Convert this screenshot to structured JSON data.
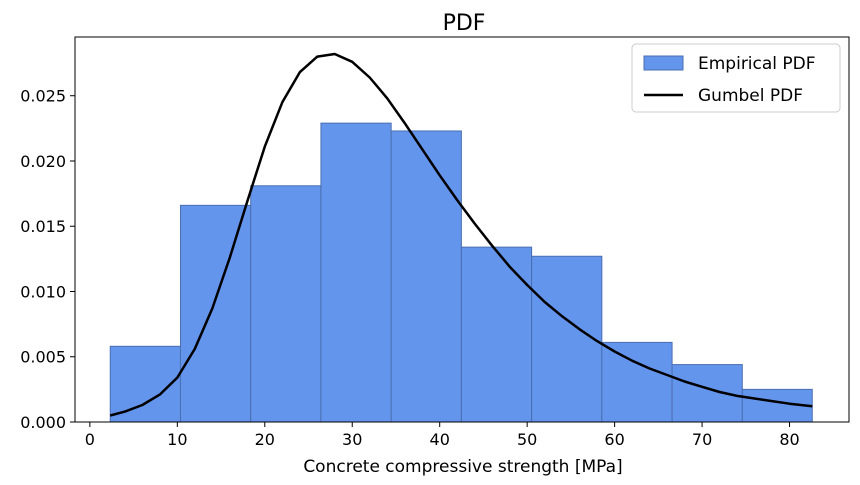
{
  "chart_data": {
    "type": "bar",
    "title": "PDF",
    "xlabel": "Concrete compressive strength [MPa]",
    "ylabel": "",
    "xlim": [
      -1.7,
      86.8
    ],
    "ylim": [
      0,
      0.0295
    ],
    "xticks": [
      0,
      10,
      20,
      30,
      40,
      50,
      60,
      70,
      80
    ],
    "xtick_labels": [
      "0",
      "10",
      "20",
      "30",
      "40",
      "50",
      "60",
      "70",
      "80"
    ],
    "yticks": [
      0,
      0.005,
      0.01,
      0.015,
      0.02,
      0.025
    ],
    "ytick_labels": [
      "0.000",
      "0.005",
      "0.010",
      "0.015",
      "0.020",
      "0.025"
    ],
    "grid": false,
    "legend_position": "top-right",
    "histogram": {
      "name": "Empirical PDF",
      "color": "#6495ED",
      "edge_color": "#4a6fb0",
      "bin_edges": [
        2.33,
        10.36,
        18.39,
        26.42,
        34.45,
        42.48,
        50.51,
        58.54,
        66.57,
        74.6,
        82.6
      ],
      "values": [
        0.0058,
        0.0166,
        0.0181,
        0.0229,
        0.0223,
        0.0134,
        0.0127,
        0.0061,
        0.0044,
        0.0025
      ]
    },
    "curve": {
      "name": "Gumbel PDF",
      "color": "#000000",
      "x": [
        2.33,
        4,
        6,
        8,
        10,
        12,
        14,
        16,
        18,
        20,
        22,
        24,
        26,
        28,
        30,
        32,
        34,
        36,
        38,
        40,
        42,
        44,
        46,
        48,
        50,
        52,
        54,
        56,
        58,
        60,
        62,
        64,
        66,
        68,
        70,
        72,
        74,
        76,
        78,
        80,
        82.6
      ],
      "y": [
        0.0005,
        0.0008,
        0.0013,
        0.0021,
        0.0034,
        0.0056,
        0.0087,
        0.0126,
        0.0169,
        0.0211,
        0.0245,
        0.0268,
        0.028,
        0.0282,
        0.0276,
        0.0264,
        0.0248,
        0.0229,
        0.0209,
        0.0189,
        0.017,
        0.0152,
        0.0135,
        0.0119,
        0.0105,
        0.0092,
        0.0081,
        0.0071,
        0.0062,
        0.0054,
        0.0047,
        0.0041,
        0.0036,
        0.0031,
        0.0027,
        0.0023,
        0.002,
        0.0018,
        0.0016,
        0.0014,
        0.0012
      ]
    }
  }
}
